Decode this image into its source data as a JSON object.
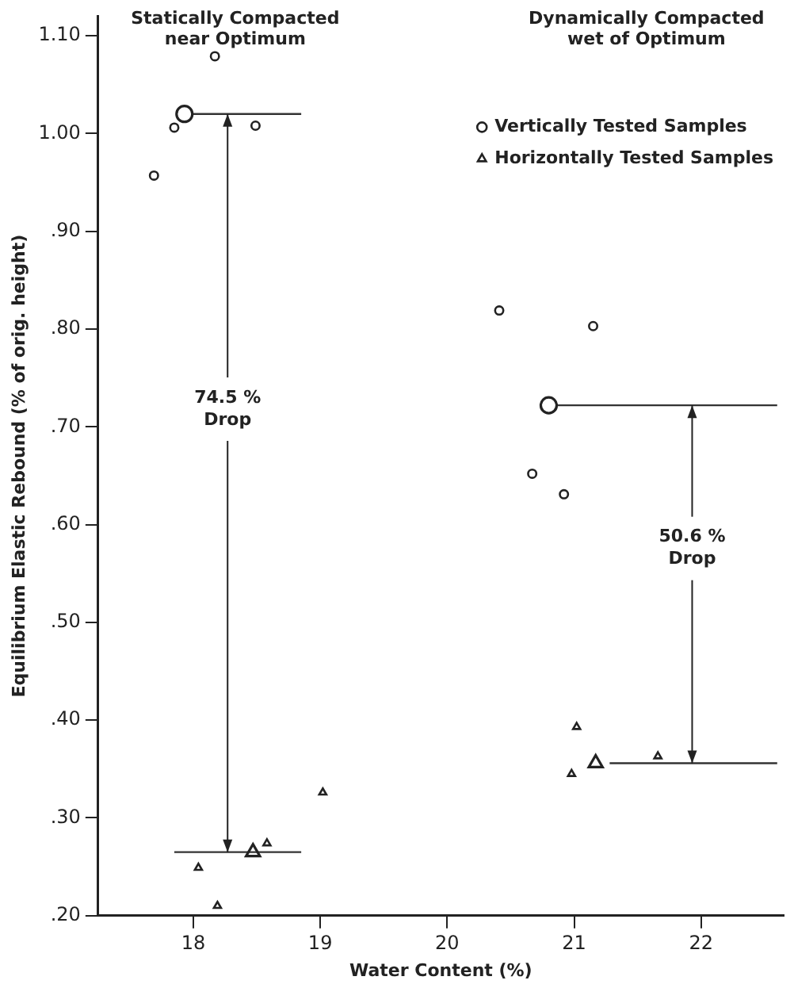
{
  "chart_data": {
    "type": "scatter",
    "xlabel": "Water Content (%)",
    "ylabel": "Equilibrium Elastic Rebound (% of orig. height)",
    "xlim": [
      17.25,
      22.65
    ],
    "xticks": [
      18,
      19,
      20,
      21,
      22
    ],
    "ylim": [
      0.2,
      1.12
    ],
    "yticks": [
      {
        "value": 0.2,
        "label": ".20"
      },
      {
        "value": 0.3,
        "label": ".30"
      },
      {
        "value": 0.4,
        "label": ".40"
      },
      {
        "value": 0.5,
        "label": ".50"
      },
      {
        "value": 0.6,
        "label": ".60"
      },
      {
        "value": 0.7,
        "label": ".70"
      },
      {
        "value": 0.8,
        "label": ".80"
      },
      {
        "value": 0.9,
        "label": ".90"
      },
      {
        "value": 1.0,
        "label": "1.00"
      },
      {
        "value": 1.1,
        "label": "1.10"
      }
    ],
    "grid": false,
    "legend": "top right",
    "series": [
      {
        "name": "Vertically Tested Samples",
        "type": "scatter",
        "marker": "circle",
        "color": "#222222",
        "x": [
          17.69,
          17.85,
          18.17,
          18.49,
          20.41,
          21.15,
          20.67,
          20.92
        ],
        "values": [
          0.957,
          1.006,
          1.079,
          1.008,
          0.819,
          0.803,
          0.652,
          0.631
        ]
      },
      {
        "name": "Horizontally Tested Samples",
        "type": "scatter",
        "marker": "triangle",
        "color": "#222222",
        "x": [
          18.04,
          18.19,
          19.02,
          18.58,
          21.02,
          20.98,
          21.66
        ],
        "values": [
          0.249,
          0.21,
          0.326,
          0.274,
          0.393,
          0.345,
          0.363
        ]
      },
      {
        "type": "scatter",
        "marker": "circle",
        "color": "#222222",
        "x": [
          17.93,
          20.8
        ],
        "values": [
          1.02,
          0.722
        ]
      },
      {
        "type": "scatter",
        "marker": "triangle",
        "color": "#222222",
        "x": [
          18.47,
          21.17
        ],
        "values": [
          0.265,
          0.356
        ]
      },
      {
        "type": "line",
        "marker": "none",
        "color": "#333333",
        "x": [
          17.99,
          18.85
        ],
        "values": [
          1.02,
          1.02
        ]
      },
      {
        "type": "line",
        "marker": "none",
        "color": "#333333",
        "x": [
          17.85,
          18.85
        ],
        "values": [
          0.265,
          0.265
        ]
      },
      {
        "type": "line",
        "marker": "none",
        "color": "#333333",
        "x": [
          20.86,
          22.6
        ],
        "values": [
          0.722,
          0.722
        ]
      },
      {
        "type": "line",
        "marker": "none",
        "color": "#333333",
        "x": [
          21.28,
          22.6
        ],
        "values": [
          0.356,
          0.356
        ]
      }
    ],
    "annotations": [
      "Statically Compacted\nnear Optimum",
      "Dynamically Compacted\nwet of Optimum",
      {
        "text": "74.5 %\nDrop",
        "x": 18.27,
        "y": 1.02
      },
      {
        "text": "50.6 %\nDrop",
        "x": 21.93,
        "y": 0.722
      }
    ]
  }
}
